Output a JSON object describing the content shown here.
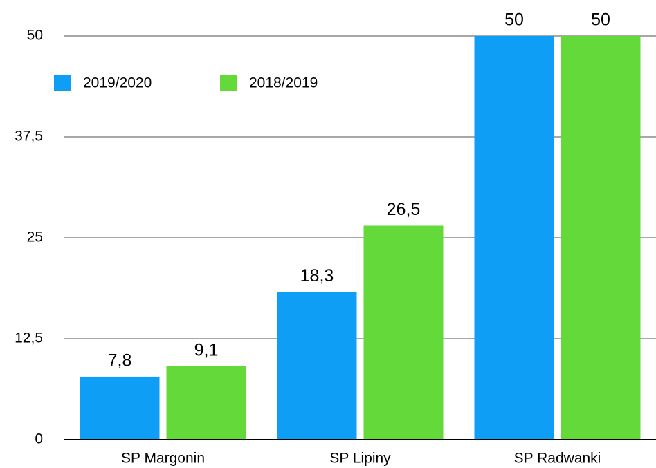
{
  "chart_data": {
    "type": "bar",
    "categories": [
      "SP Margonin",
      "SP Lipiny",
      "SP Radwanki"
    ],
    "series": [
      {
        "name": "2019/2020",
        "color": "#0f9ef5",
        "values": [
          7.8,
          18.3,
          50
        ],
        "value_labels": [
          "7,8",
          "18,3",
          "50"
        ]
      },
      {
        "name": "2018/2019",
        "color": "#63d93a",
        "values": [
          9.1,
          26.5,
          50
        ],
        "value_labels": [
          "9,1",
          "26,5",
          "50"
        ]
      }
    ],
    "ylim": [
      0,
      50
    ],
    "yticks": [
      0,
      {
        "value": 12.5,
        "label": "12,5"
      },
      25,
      {
        "value": 37.5,
        "label": "37,5"
      },
      50
    ],
    "grid": true,
    "legend": "top-left"
  }
}
